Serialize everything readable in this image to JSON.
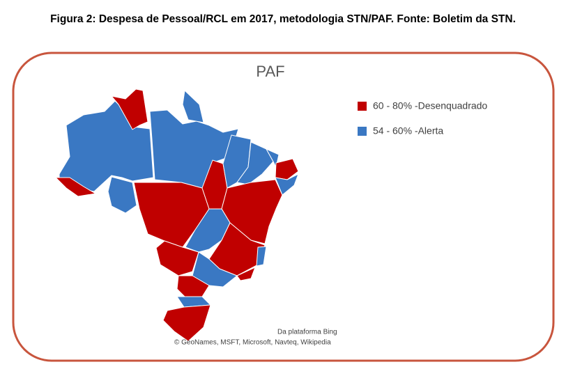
{
  "caption": "Figura 2: Despesa de Pessoal/RCL em 2017, metodologia STN/PAF. Fonte: Boletim da STN.",
  "map": {
    "title": "PAF",
    "legend": [
      {
        "label": "60 - 80% -Desenquadrado",
        "color": "#c00000"
      },
      {
        "label": "54 - 60% -Alerta",
        "color": "#3a78c3"
      }
    ],
    "attribution": [
      "Da plataforma Bing",
      "© GeoNames, MSFT, Microsoft, Navteq, Wikipedia"
    ]
  }
}
